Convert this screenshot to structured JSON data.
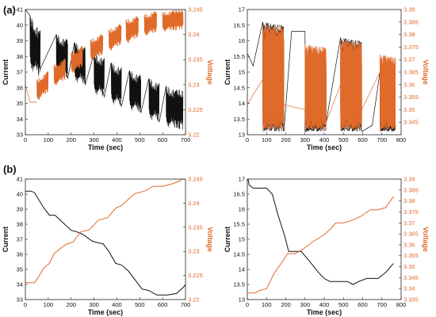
{
  "colors": {
    "current": "#111111",
    "voltage": "#e06a2a"
  },
  "panel_labels": [
    "(a)",
    "(b)"
  ],
  "chart_data": [
    {
      "type": "line",
      "panel": "(a)",
      "xlabel": "Time (sec)",
      "ylabel": "Current",
      "y2label": "Voltage",
      "xlim": [
        0,
        700
      ],
      "ylim": [
        33,
        41
      ],
      "y2lim": [
        3.22,
        3.245
      ],
      "xticks": [
        "0",
        "100",
        "200",
        "300",
        "400",
        "500",
        "600",
        "700"
      ],
      "yticks": [
        "33",
        "34",
        "35",
        "36",
        "37",
        "38",
        "39",
        "40",
        "41"
      ],
      "y2ticks": [
        "3.22",
        "3.225",
        "3.23",
        "3.235",
        "3.24",
        "3.245"
      ],
      "series": [
        {
          "axis": "left",
          "color": "#111111",
          "segments": [
            {
              "x": [
                20,
                65
              ],
              "low": [
                37.2,
                36.6
              ],
              "high": [
                40.6,
                39.8
              ],
              "osc": 0.93
            },
            {
              "x": [
                135,
                185
              ],
              "low": [
                36.8,
                36.6
              ],
              "high": [
                39.4,
                39.2
              ],
              "osc": 0.93
            },
            {
              "x": [
                215,
                262
              ],
              "low": [
                36.4,
                36.2
              ],
              "high": [
                38.9,
                38.7
              ],
              "osc": 0.93
            },
            {
              "x": [
                300,
                345
              ],
              "low": [
                35.6,
                35.4
              ],
              "high": [
                38.2,
                38.0
              ],
              "osc": 0.93
            },
            {
              "x": [
                375,
                420
              ],
              "low": [
                35.0,
                34.8
              ],
              "high": [
                37.6,
                37.4
              ],
              "osc": 0.93
            },
            {
              "x": [
                455,
                505
              ],
              "low": [
                34.6,
                34.4
              ],
              "high": [
                37.1,
                36.9
              ],
              "osc": 0.93
            },
            {
              "x": [
                540,
                585
              ],
              "low": [
                34.0,
                33.8
              ],
              "high": [
                36.6,
                36.4
              ],
              "osc": 0.93
            },
            {
              "x": [
                615,
                690
              ],
              "low": [
                33.5,
                33.3
              ],
              "high": [
                36.1,
                35.9
              ],
              "osc": 0.93
            }
          ],
          "connectors": [
            [
              0,
              41
            ],
            [
              20,
              40.6
            ],
            [
              65,
              37.2
            ],
            [
              135,
              39.4
            ],
            [
              185,
              36.6
            ],
            [
              215,
              38.9
            ],
            [
              262,
              36.2
            ],
            [
              300,
              38.2
            ],
            [
              345,
              35.4
            ],
            [
              375,
              37.6
            ],
            [
              420,
              34.8
            ],
            [
              455,
              37.1
            ],
            [
              505,
              34.4
            ],
            [
              540,
              36.6
            ],
            [
              585,
              33.8
            ],
            [
              615,
              36.1
            ]
          ]
        },
        {
          "axis": "right",
          "color": "#e06a2a",
          "segments": [
            {
              "x": [
                50,
                100
              ],
              "low": [
                3.2265,
                3.2285
              ],
              "high": [
                3.231,
                3.233
              ],
              "osc": 0.93
            },
            {
              "x": [
                125,
                175
              ],
              "low": [
                3.2295,
                3.231
              ],
              "high": [
                3.234,
                3.2355
              ],
              "osc": 0.93
            },
            {
              "x": [
                200,
                250
              ],
              "low": [
                3.232,
                3.2335
              ],
              "high": [
                3.2365,
                3.238
              ],
              "osc": 0.93
            },
            {
              "x": [
                285,
                340
              ],
              "low": [
                3.2345,
                3.236
              ],
              "high": [
                3.239,
                3.2405
              ],
              "osc": 0.93
            },
            {
              "x": [
                365,
                420
              ],
              "low": [
                3.2365,
                3.238
              ],
              "high": [
                3.241,
                3.2425
              ],
              "osc": 0.93
            },
            {
              "x": [
                440,
                495
              ],
              "low": [
                3.238,
                3.2395
              ],
              "high": [
                3.243,
                3.244
              ],
              "osc": 0.93
            },
            {
              "x": [
                520,
                575
              ],
              "low": [
                3.2395,
                3.2405
              ],
              "high": [
                3.244,
                3.245
              ],
              "osc": 0.93
            },
            {
              "x": [
                600,
                690
              ],
              "low": [
                3.2405,
                3.241
              ],
              "high": [
                3.2445,
                3.2455
              ],
              "osc": 0.93
            }
          ],
          "connectors": [
            [
              0,
              3.23
            ],
            [
              20,
              3.2265
            ],
            [
              50,
              3.2265
            ]
          ]
        }
      ]
    },
    {
      "type": "line",
      "panel": "(a)",
      "xlabel": "Time (sec)",
      "ylabel": "Current",
      "y2label": "Voltage",
      "xlim": [
        0,
        800
      ],
      "ylim": [
        13,
        17
      ],
      "y2lim": [
        3.34,
        3.39
      ],
      "xticks": [
        "0",
        "100",
        "200",
        "300",
        "400",
        "500",
        "600",
        "700",
        "800"
      ],
      "yticks": [
        "13",
        "13.5",
        "14",
        "14.5",
        "15",
        "15.5",
        "16",
        "16.5",
        "17"
      ],
      "y2ticks": [
        "3.345",
        "3.35",
        "3.355",
        "3.36",
        "3.365",
        "3.37",
        "3.375",
        "3.38",
        "3.385",
        "3.39"
      ],
      "series": [
        {
          "axis": "left",
          "color": "#111111",
          "segments": [
            {
              "x": [
                80,
                190
              ],
              "low": [
                13.1,
                13.1
              ],
              "high": [
                16.6,
                16.5
              ],
              "osc": 0.14
            },
            {
              "x": [
                300,
                410
              ],
              "low": [
                13.1,
                13.1
              ],
              "high": [
                15.7,
                15.6
              ],
              "osc": 0.14
            },
            {
              "x": [
                485,
                595
              ],
              "low": [
                13.1,
                13.1
              ],
              "high": [
                16.1,
                16.0
              ],
              "osc": 0.14
            },
            {
              "x": [
                690,
                770
              ],
              "low": [
                13.1,
                13.1
              ],
              "high": [
                15.0,
                14.9
              ],
              "osc": 0.14
            }
          ],
          "connectors": [
            [
              0,
              15.6
            ],
            [
              30,
              15.2
            ],
            [
              80,
              16.6
            ],
            [
              190,
              13.1
            ],
            [
              230,
              16.3
            ],
            [
              300,
              16.3
            ],
            [
              300,
              13.1
            ],
            [
              410,
              13.4
            ],
            [
              485,
              16.1
            ],
            [
              595,
              13.1
            ],
            [
              650,
              13.3
            ],
            [
              690,
              15.0
            ]
          ]
        },
        {
          "axis": "right",
          "color": "#e06a2a",
          "segments": [
            {
              "x": [
                80,
                190
              ],
              "low": [
                3.342,
                3.342
              ],
              "high": [
                3.384,
                3.383
              ],
              "osc": 0.14
            },
            {
              "x": [
                300,
                410
              ],
              "low": [
                3.342,
                3.342
              ],
              "high": [
                3.376,
                3.375
              ],
              "osc": 0.14
            },
            {
              "x": [
                485,
                595
              ],
              "low": [
                3.342,
                3.342
              ],
              "high": [
                3.378,
                3.377
              ],
              "osc": 0.14
            },
            {
              "x": [
                690,
                770
              ],
              "low": [
                3.342,
                3.342
              ],
              "high": [
                3.372,
                3.371
              ],
              "osc": 0.14
            }
          ],
          "connectors": [
            [
              0,
              3.352
            ],
            [
              30,
              3.356
            ],
            [
              80,
              3.362
            ],
            [
              190,
              3.352
            ],
            [
              300,
              3.35
            ],
            [
              410,
              3.345
            ],
            [
              485,
              3.36
            ],
            [
              595,
              3.35
            ],
            [
              690,
              3.365
            ]
          ]
        }
      ]
    },
    {
      "type": "line",
      "panel": "(b)",
      "xlabel": "Time (sec)",
      "ylabel": "Current",
      "y2label": "Voltage",
      "xlim": [
        0,
        700
      ],
      "ylim": [
        33,
        41
      ],
      "y2lim": [
        3.22,
        3.245
      ],
      "xticks": [
        "0",
        "100",
        "200",
        "300",
        "400",
        "500",
        "600",
        "700"
      ],
      "yticks": [
        "33",
        "34",
        "35",
        "36",
        "37",
        "38",
        "39",
        "40",
        "41"
      ],
      "y2ticks": [
        "3.22",
        "3.225",
        "3.23",
        "3.235",
        "3.24",
        "3.245"
      ],
      "series": [
        {
          "axis": "left",
          "color": "#111111",
          "x": [
            0,
            25,
            40,
            80,
            105,
            130,
            165,
            200,
            225,
            255,
            290,
            310,
            340,
            365,
            395,
            420,
            450,
            480,
            510,
            540,
            575,
            620,
            660,
            690,
            700
          ],
          "y": [
            40.2,
            40.2,
            40.1,
            39.1,
            38.6,
            38.6,
            38.1,
            37.6,
            37.5,
            37.3,
            36.9,
            36.8,
            36.7,
            36.2,
            35.4,
            35.3,
            34.9,
            34.3,
            33.7,
            33.6,
            33.3,
            33.3,
            33.4,
            33.8,
            34.0
          ]
        },
        {
          "axis": "right",
          "color": "#e06a2a",
          "x": [
            0,
            40,
            55,
            80,
            105,
            125,
            150,
            180,
            210,
            240,
            280,
            320,
            360,
            395,
            420,
            455,
            480,
            520,
            560,
            600,
            640,
            670,
            700
          ],
          "y": [
            3.2235,
            3.2235,
            3.2245,
            3.2265,
            3.2275,
            3.2295,
            3.2305,
            3.2315,
            3.232,
            3.234,
            3.2345,
            3.2365,
            3.237,
            3.239,
            3.2395,
            3.241,
            3.242,
            3.2425,
            3.2435,
            3.2435,
            3.244,
            3.2445,
            3.2455
          ]
        }
      ]
    },
    {
      "type": "line",
      "panel": "(b)",
      "xlabel": "Time (sec)",
      "ylabel": "Current",
      "y2label": "Voltage",
      "xlim": [
        0,
        800
      ],
      "ylim": [
        13,
        17
      ],
      "y2lim": [
        3.335,
        3.39
      ],
      "xticks": [
        "0",
        "100",
        "200",
        "300",
        "400",
        "500",
        "600",
        "700",
        "800"
      ],
      "yticks": [
        "13",
        "13.5",
        "14",
        "14.5",
        "15",
        "15.5",
        "16",
        "16.5",
        "17"
      ],
      "y2ticks": [
        "3.335",
        "3.34",
        "3.345",
        "3.35",
        "3.355",
        "3.36",
        "3.365",
        "3.37",
        "3.375",
        "3.38",
        "3.385",
        "3.39"
      ],
      "series": [
        {
          "axis": "left",
          "color": "#111111",
          "x": [
            0,
            10,
            30,
            100,
            130,
            160,
            195,
            215,
            280,
            320,
            370,
            400,
            430,
            460,
            490,
            520,
            550,
            580,
            620,
            680,
            720,
            760
          ],
          "y": [
            17.1,
            16.8,
            16.7,
            16.7,
            16.5,
            15.8,
            15.1,
            14.6,
            14.6,
            14.3,
            13.9,
            13.7,
            13.6,
            13.6,
            13.6,
            13.6,
            13.5,
            13.6,
            13.7,
            13.7,
            13.9,
            14.2
          ]
        },
        {
          "axis": "right",
          "color": "#e06a2a",
          "x": [
            0,
            40,
            60,
            100,
            140,
            180,
            210,
            250,
            290,
            320,
            350,
            390,
            430,
            460,
            500,
            540,
            590,
            640,
            680,
            720,
            760
          ],
          "y": [
            3.338,
            3.338,
            3.339,
            3.34,
            3.347,
            3.352,
            3.356,
            3.356,
            3.358,
            3.36,
            3.362,
            3.364,
            3.367,
            3.37,
            3.37,
            3.371,
            3.373,
            3.376,
            3.376,
            3.377,
            3.382
          ]
        }
      ]
    }
  ]
}
